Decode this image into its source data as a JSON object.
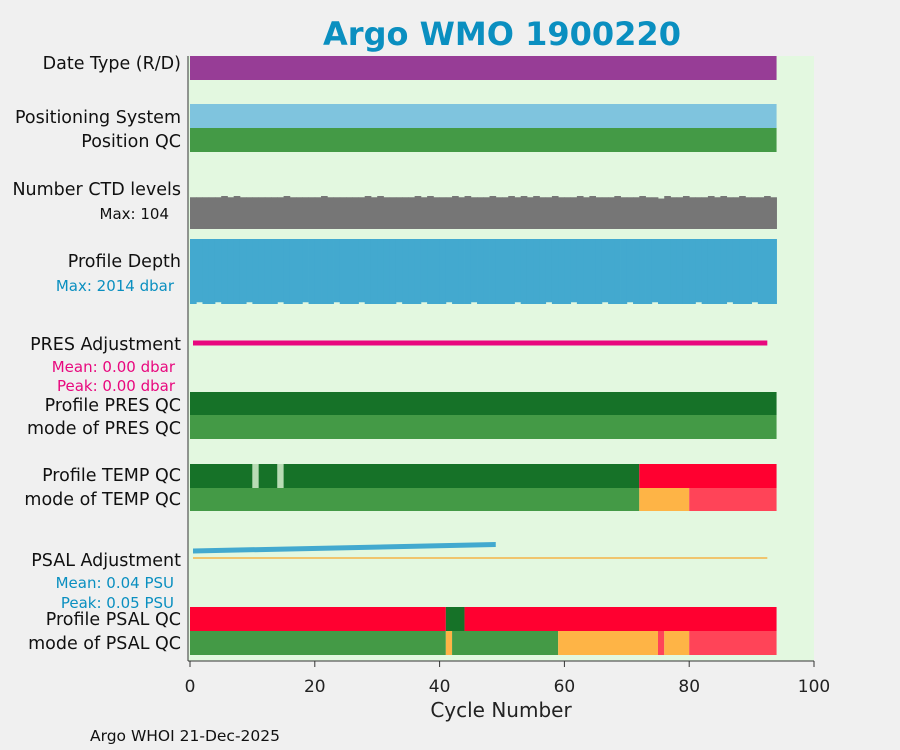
{
  "chart_data": {
    "type": "bar",
    "title": "Argo WMO 1900220",
    "xlabel": "Cycle Number",
    "xlim": [
      0,
      100
    ],
    "xticks": [
      "0",
      "20",
      "40",
      "60",
      "80",
      "100"
    ],
    "xtick_values": [
      0,
      20,
      40,
      60,
      80,
      100
    ],
    "footer": "Argo WHOI 21-Dec-2025",
    "colors": {
      "title": "#0a8fc0",
      "plot_bg": "#e3f8e0",
      "purple": "#973d96",
      "lightblue": "#7fc4de",
      "good": "#449a46",
      "darkgreen": "#167228",
      "gray": "#767676",
      "depth": "#43a9cf",
      "pink": "#e8087e",
      "red": "#ff0030",
      "orange": "#feb446",
      "lightred": "#ff4458",
      "pale": "#b9dcb5",
      "psal_adj": "#43a9cf",
      "psal_line": "#f4b449"
    },
    "rows": {
      "date_type": {
        "label": "Date Type (R/D)",
        "segments": [
          {
            "from": 0,
            "to": 94,
            "color": "purple"
          }
        ]
      },
      "positioning_system": {
        "label": "Positioning System",
        "segments": [
          {
            "from": 0,
            "to": 94,
            "color": "lightblue"
          }
        ]
      },
      "position_qc": {
        "label": "Position QC",
        "segments": [
          {
            "from": 0,
            "to": 94,
            "color": "good"
          }
        ]
      },
      "ctd_levels": {
        "label": "Number CTD levels",
        "max_label": "Max: 104",
        "max": 104,
        "typical": 100
      },
      "profile_depth": {
        "label": "Profile Depth",
        "max_label": "Max: 2014 dbar",
        "max_dbar": 2014
      },
      "pres_adjustment": {
        "label": "PRES Adjustment",
        "mean_label": "Mean: 0.00 dbar",
        "peak_label": "Peak: 0.00 dbar",
        "value": 0.0,
        "from": 0,
        "to": 93
      },
      "profile_pres_qc": {
        "label": "Profile PRES QC",
        "segments": [
          {
            "from": 0,
            "to": 94,
            "color": "darkgreen"
          }
        ]
      },
      "mode_pres_qc": {
        "label": "mode of PRES QC",
        "segments": [
          {
            "from": 0,
            "to": 94,
            "color": "good"
          }
        ]
      },
      "profile_temp_qc": {
        "label": "Profile TEMP QC",
        "segments": [
          {
            "from": 0,
            "to": 10,
            "color": "darkgreen"
          },
          {
            "from": 10,
            "to": 11,
            "color": "pale"
          },
          {
            "from": 11,
            "to": 14,
            "color": "darkgreen"
          },
          {
            "from": 14,
            "to": 15,
            "color": "pale"
          },
          {
            "from": 15,
            "to": 72,
            "color": "darkgreen"
          },
          {
            "from": 72,
            "to": 94,
            "color": "red"
          }
        ]
      },
      "mode_temp_qc": {
        "label": "mode of TEMP QC",
        "segments": [
          {
            "from": 0,
            "to": 72,
            "color": "good"
          },
          {
            "from": 72,
            "to": 80,
            "color": "orange"
          },
          {
            "from": 80,
            "to": 94,
            "color": "lightred"
          }
        ]
      },
      "psal_adjustment": {
        "label": "PSAL Adjustment",
        "mean_label": "Mean: 0.04 PSU",
        "peak_label": "Peak: 0.05 PSU",
        "start_cycle": 0,
        "end_cycle": 49,
        "start_value": 0.035,
        "end_value": 0.05,
        "zero_line_to": 93
      },
      "profile_psal_qc": {
        "label": "Profile PSAL QC",
        "segments": [
          {
            "from": 0,
            "to": 41,
            "color": "red"
          },
          {
            "from": 41,
            "to": 44,
            "color": "darkgreen"
          },
          {
            "from": 44,
            "to": 94,
            "color": "red"
          }
        ]
      },
      "mode_psal_qc": {
        "label": "mode of PSAL QC",
        "segments": [
          {
            "from": 0,
            "to": 41,
            "color": "good"
          },
          {
            "from": 41,
            "to": 42,
            "color": "orange"
          },
          {
            "from": 42,
            "to": 59,
            "color": "good"
          },
          {
            "from": 59,
            "to": 75,
            "color": "orange"
          },
          {
            "from": 75,
            "to": 76,
            "color": "lightred"
          },
          {
            "from": 76,
            "to": 80,
            "color": "orange"
          },
          {
            "from": 80,
            "to": 94,
            "color": "lightred"
          }
        ]
      }
    }
  }
}
